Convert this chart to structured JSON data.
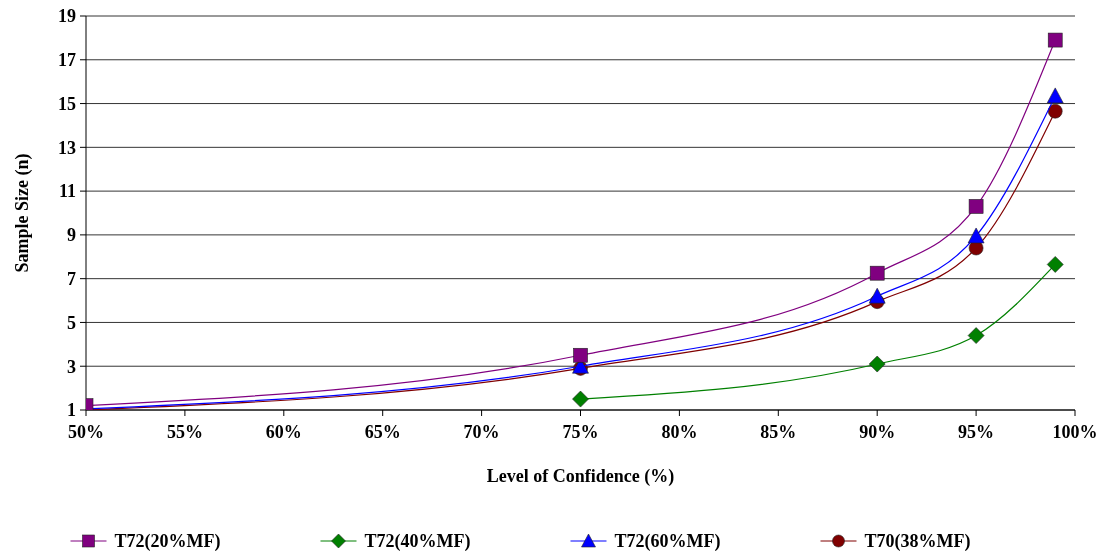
{
  "chart_data": {
    "type": "line",
    "xlabel": "Level of Confidence (%)",
    "ylabel": "Sample Size (n)",
    "x": [
      50,
      75,
      90,
      95,
      99
    ],
    "xlim": [
      50,
      100
    ],
    "xticks": [
      {
        "value": 50,
        "label": "50%"
      },
      {
        "value": 55,
        "label": "55%"
      },
      {
        "value": 60,
        "label": "60%"
      },
      {
        "value": 65,
        "label": "65%"
      },
      {
        "value": 70,
        "label": "70%"
      },
      {
        "value": 75,
        "label": "75%"
      },
      {
        "value": 80,
        "label": "80%"
      },
      {
        "value": 85,
        "label": "85%"
      },
      {
        "value": 90,
        "label": "90%"
      },
      {
        "value": 95,
        "label": "95%"
      },
      {
        "value": 100,
        "label": "100%"
      }
    ],
    "ylim": [
      1,
      19
    ],
    "yticks": [
      1,
      3,
      5,
      7,
      9,
      11,
      13,
      15,
      17,
      19
    ],
    "grid": "y",
    "legend": "bottom",
    "series": [
      {
        "name": "T72(20%MF)",
        "color": "#800080",
        "marker": "square",
        "values": [
          1.2,
          3.5,
          7.25,
          10.3,
          17.9
        ]
      },
      {
        "name": "T72(40%MF)",
        "color": "#008000",
        "marker": "diamond",
        "values": [
          null,
          1.5,
          3.1,
          4.4,
          7.65
        ]
      },
      {
        "name": "T72(60%MF)",
        "color": "#0000ff",
        "marker": "triangle",
        "values": [
          1.05,
          3.0,
          6.2,
          8.95,
          15.35
        ]
      },
      {
        "name": "T70(38%MF)",
        "color": "#800000",
        "marker": "circle",
        "values": [
          1.0,
          2.9,
          5.95,
          8.4,
          14.65
        ]
      }
    ]
  }
}
